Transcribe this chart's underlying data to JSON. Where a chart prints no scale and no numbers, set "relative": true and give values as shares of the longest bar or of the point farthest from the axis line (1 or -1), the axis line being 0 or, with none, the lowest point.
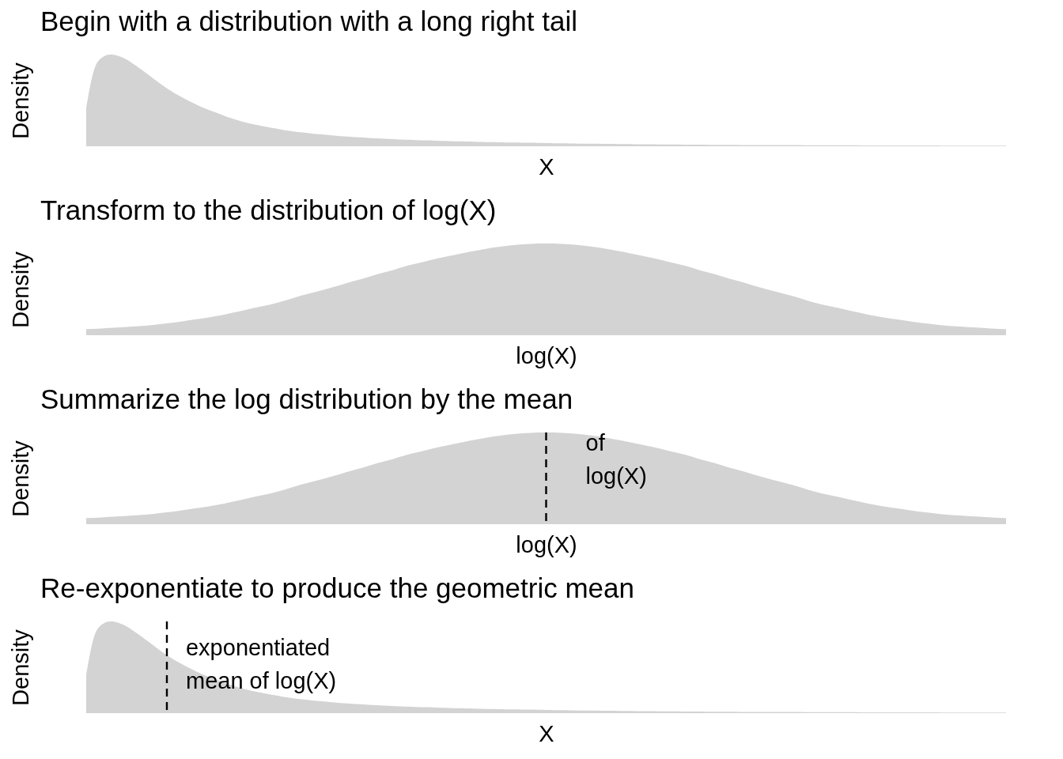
{
  "chart_data": [
    {
      "type": "area",
      "title": "Begin with a distribution with a long right tail",
      "xlabel": "X",
      "ylabel": "Density",
      "relative": true,
      "tick_labels": false,
      "categories": [
        null,
        null,
        null,
        null,
        null,
        null,
        null,
        null,
        null,
        null,
        null,
        null,
        null,
        null,
        null,
        null,
        null,
        null,
        null,
        null,
        null,
        null,
        null,
        null,
        null,
        null,
        null,
        null,
        null,
        null,
        null,
        null,
        null,
        null,
        null,
        null,
        null,
        null,
        null,
        null,
        null,
        null,
        null,
        null,
        null,
        null,
        null,
        null,
        null,
        null,
        null,
        null,
        null,
        null,
        null,
        null,
        null,
        null,
        null,
        null,
        null,
        null,
        null,
        null,
        null,
        null,
        null,
        null,
        null,
        null,
        null,
        null,
        null,
        null,
        null,
        null,
        null,
        null,
        null,
        null,
        null,
        null,
        null,
        null,
        null,
        null,
        null,
        null,
        null,
        null,
        null,
        null,
        null,
        null,
        null,
        null,
        null,
        null,
        null,
        null,
        null,
        null,
        null,
        null,
        null,
        null,
        null,
        null,
        null,
        null,
        null,
        null,
        null,
        null,
        null
      ],
      "series": [
        {
          "color": "#d3d3d3",
          "values": [
            0.42,
            0.84,
            0.97,
            1.0,
            0.985,
            0.946,
            0.887,
            0.825,
            0.761,
            0.693,
            0.632,
            0.576,
            0.528,
            0.482,
            0.439,
            0.402,
            0.37,
            0.337,
            0.305,
            0.277,
            0.254,
            0.234,
            0.217,
            0.201,
            0.186,
            0.17,
            0.158,
            0.148,
            0.138,
            0.131,
            0.123,
            0.115,
            0.108,
            0.102,
            0.096,
            0.091,
            0.086,
            0.082,
            0.077,
            0.074,
            0.071,
            0.067,
            0.064,
            0.062,
            0.059,
            0.057,
            0.054,
            0.052,
            0.05,
            0.047,
            0.045,
            0.044,
            0.042,
            0.041,
            0.039,
            0.038,
            0.036,
            0.035,
            0.033,
            0.032,
            0.03,
            0.029,
            0.028,
            0.027,
            0.026,
            0.025,
            0.024,
            0.023,
            0.022,
            0.022,
            0.021,
            0.02,
            0.019,
            0.019,
            0.018,
            0.017,
            0.017,
            0.016,
            0.016,
            0.015,
            0.015,
            0.014,
            0.014,
            0.013,
            0.013,
            0.013,
            0.012,
            0.012,
            0.012,
            0.011,
            0.011,
            0.011,
            0.01,
            0.01,
            0.01,
            0.01,
            0.009,
            0.009,
            0.009,
            0.009,
            0.009,
            0.008,
            0.008,
            0.008,
            0.008,
            0.008,
            0.007,
            0.007,
            0.007,
            0.007,
            0.007,
            0.006,
            0.006,
            0.006,
            0.006
          ]
        }
      ]
    },
    {
      "type": "area",
      "title": "Transform to the distribution of log(X)",
      "xlabel": "log(X)",
      "ylabel": "Density",
      "relative": true,
      "tick_labels": false,
      "categories": [
        null,
        null,
        null,
        null,
        null,
        null,
        null,
        null,
        null,
        null,
        null,
        null,
        null,
        null,
        null,
        null,
        null,
        null,
        null,
        null,
        null,
        null,
        null,
        null,
        null,
        null,
        null,
        null,
        null,
        null,
        null,
        null,
        null,
        null,
        null,
        null,
        null,
        null,
        null,
        null,
        null,
        null,
        null,
        null,
        null,
        null,
        null,
        null,
        null,
        null,
        null,
        null,
        null,
        null,
        null,
        null,
        null,
        null,
        null,
        null,
        null
      ],
      "series": [
        {
          "color": "#d3d3d3",
          "values": [
            0.066,
            0.074,
            0.083,
            0.094,
            0.105,
            0.125,
            0.145,
            0.17,
            0.195,
            0.225,
            0.26,
            0.3,
            0.335,
            0.38,
            0.43,
            0.475,
            0.52,
            0.57,
            0.615,
            0.665,
            0.71,
            0.76,
            0.8,
            0.84,
            0.875,
            0.91,
            0.94,
            0.965,
            0.984,
            0.996,
            1.0,
            0.996,
            0.984,
            0.965,
            0.94,
            0.91,
            0.875,
            0.84,
            0.8,
            0.76,
            0.71,
            0.665,
            0.615,
            0.57,
            0.52,
            0.475,
            0.43,
            0.38,
            0.335,
            0.3,
            0.26,
            0.225,
            0.195,
            0.17,
            0.145,
            0.125,
            0.105,
            0.094,
            0.083,
            0.074,
            0.066
          ]
        }
      ]
    },
    {
      "type": "area",
      "title": "Summarize the log distribution by the mean",
      "xlabel": "log(X)",
      "ylabel": "Density",
      "relative": true,
      "tick_labels": false,
      "categories": [
        null,
        null,
        null,
        null,
        null,
        null,
        null,
        null,
        null,
        null,
        null,
        null,
        null,
        null,
        null,
        null,
        null,
        null,
        null,
        null,
        null,
        null,
        null,
        null,
        null,
        null,
        null,
        null,
        null,
        null,
        null,
        null,
        null,
        null,
        null,
        null,
        null,
        null,
        null,
        null,
        null,
        null,
        null,
        null,
        null,
        null,
        null,
        null,
        null,
        null,
        null,
        null,
        null,
        null,
        null,
        null,
        null,
        null,
        null,
        null,
        null
      ],
      "series": [
        {
          "color": "#d3d3d3",
          "values": [
            0.066,
            0.074,
            0.083,
            0.094,
            0.105,
            0.125,
            0.145,
            0.17,
            0.195,
            0.225,
            0.26,
            0.3,
            0.335,
            0.38,
            0.43,
            0.475,
            0.52,
            0.57,
            0.615,
            0.665,
            0.71,
            0.76,
            0.8,
            0.84,
            0.875,
            0.91,
            0.94,
            0.965,
            0.984,
            0.996,
            1.0,
            0.996,
            0.984,
            0.965,
            0.94,
            0.91,
            0.875,
            0.84,
            0.8,
            0.76,
            0.71,
            0.665,
            0.615,
            0.57,
            0.52,
            0.475,
            0.43,
            0.38,
            0.335,
            0.3,
            0.26,
            0.225,
            0.195,
            0.17,
            0.145,
            0.125,
            0.105,
            0.094,
            0.083,
            0.074,
            0.066
          ]
        }
      ],
      "annotations": [
        "of\nlog(X)"
      ]
    },
    {
      "type": "area",
      "title": "Re-exponentiate to produce the geometric mean",
      "xlabel": "X",
      "ylabel": "Density",
      "relative": true,
      "tick_labels": false,
      "categories": [
        null,
        null,
        null,
        null,
        null,
        null,
        null,
        null,
        null,
        null,
        null,
        null,
        null,
        null,
        null,
        null,
        null,
        null,
        null,
        null,
        null,
        null,
        null,
        null,
        null,
        null,
        null,
        null,
        null,
        null,
        null,
        null,
        null,
        null,
        null,
        null,
        null,
        null,
        null,
        null,
        null,
        null,
        null,
        null,
        null,
        null,
        null,
        null,
        null,
        null,
        null,
        null,
        null,
        null,
        null,
        null,
        null,
        null,
        null,
        null,
        null,
        null,
        null,
        null,
        null,
        null,
        null,
        null,
        null,
        null,
        null,
        null,
        null,
        null,
        null,
        null,
        null,
        null,
        null,
        null,
        null,
        null,
        null,
        null,
        null,
        null,
        null,
        null,
        null,
        null,
        null,
        null,
        null,
        null,
        null,
        null,
        null,
        null,
        null,
        null,
        null,
        null,
        null,
        null,
        null,
        null,
        null,
        null,
        null,
        null,
        null,
        null,
        null,
        null,
        null
      ],
      "series": [
        {
          "color": "#d3d3d3",
          "values": [
            0.42,
            0.84,
            0.97,
            1.0,
            0.985,
            0.946,
            0.887,
            0.825,
            0.761,
            0.693,
            0.632,
            0.576,
            0.528,
            0.482,
            0.439,
            0.402,
            0.37,
            0.337,
            0.305,
            0.277,
            0.254,
            0.234,
            0.217,
            0.201,
            0.186,
            0.17,
            0.158,
            0.148,
            0.138,
            0.131,
            0.123,
            0.115,
            0.108,
            0.102,
            0.096,
            0.091,
            0.086,
            0.082,
            0.077,
            0.074,
            0.071,
            0.067,
            0.064,
            0.062,
            0.059,
            0.057,
            0.054,
            0.052,
            0.05,
            0.047,
            0.045,
            0.044,
            0.042,
            0.041,
            0.039,
            0.038,
            0.036,
            0.035,
            0.033,
            0.032,
            0.03,
            0.029,
            0.028,
            0.027,
            0.026,
            0.025,
            0.024,
            0.023,
            0.022,
            0.022,
            0.021,
            0.02,
            0.019,
            0.019,
            0.018,
            0.017,
            0.017,
            0.016,
            0.016,
            0.015,
            0.015,
            0.014,
            0.014,
            0.013,
            0.013,
            0.013,
            0.012,
            0.012,
            0.012,
            0.011,
            0.011,
            0.011,
            0.01,
            0.01,
            0.01,
            0.01,
            0.009,
            0.009,
            0.009,
            0.009,
            0.009,
            0.008,
            0.008,
            0.008,
            0.008,
            0.008,
            0.007,
            0.007,
            0.007,
            0.007,
            0.007,
            0.006,
            0.006,
            0.006,
            0.006
          ]
        }
      ],
      "annotations": [
        "exponentiated\nmean of log(X)"
      ]
    }
  ]
}
